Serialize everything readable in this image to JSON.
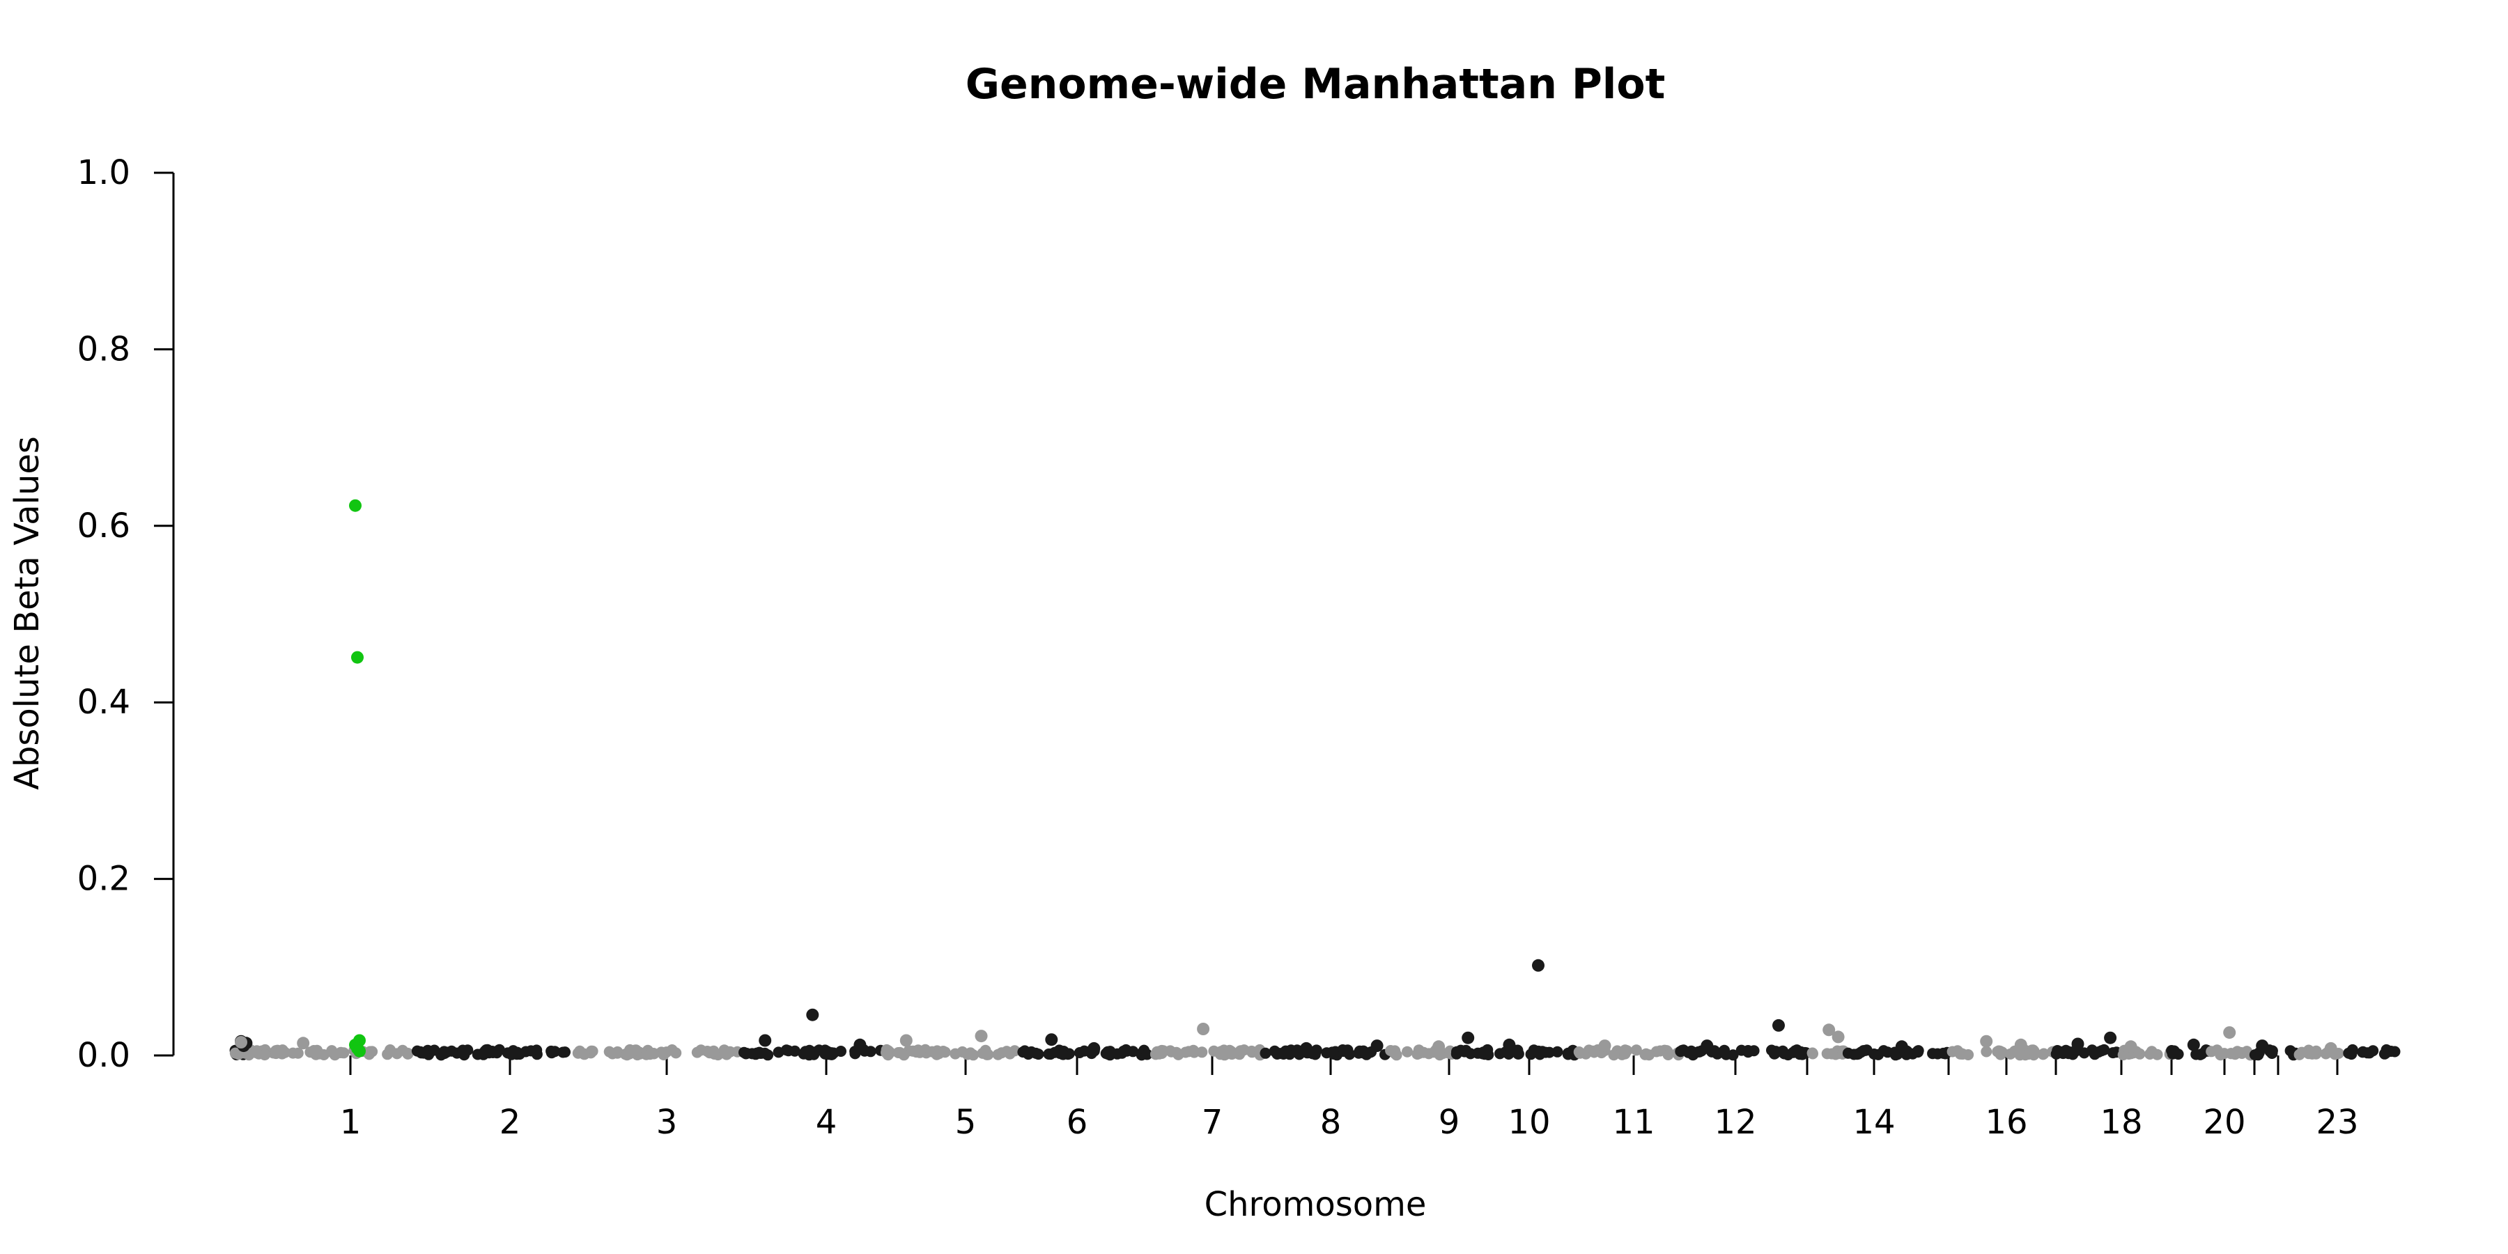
{
  "chart_data": {
    "type": "scatter",
    "title": "Genome-wide Manhattan Plot",
    "xlabel": "Chromosome",
    "ylabel": "Absolute Beta Values",
    "ylim": [
      0,
      1
    ],
    "yticks": [
      "0.0",
      "0.2",
      "0.4",
      "0.6",
      "0.8",
      "1.0"
    ],
    "grid": false,
    "chromosomes": [
      {
        "name": "1",
        "label": "1"
      },
      {
        "name": "2",
        "label": "2"
      },
      {
        "name": "3",
        "label": "3"
      },
      {
        "name": "4",
        "label": "4"
      },
      {
        "name": "5",
        "label": "5"
      },
      {
        "name": "6",
        "label": "6"
      },
      {
        "name": "7",
        "label": "7"
      },
      {
        "name": "8",
        "label": "8"
      },
      {
        "name": "9",
        "label": "9"
      },
      {
        "name": "10",
        "label": "10"
      },
      {
        "name": "11",
        "label": "11"
      },
      {
        "name": "12",
        "label": "12"
      },
      {
        "name": "13",
        "label": ""
      },
      {
        "name": "14",
        "label": "14"
      },
      {
        "name": "15",
        "label": ""
      },
      {
        "name": "16",
        "label": "16"
      },
      {
        "name": "17",
        "label": ""
      },
      {
        "name": "18",
        "label": "18"
      },
      {
        "name": "19",
        "label": ""
      },
      {
        "name": "20",
        "label": "20"
      },
      {
        "name": "21",
        "label": ""
      },
      {
        "name": "22",
        "label": ""
      },
      {
        "name": "23",
        "label": "23"
      }
    ],
    "colors": {
      "odd_chromosome": "#1a1a1a",
      "even_chromosome": "#999999",
      "highlight": "#11c511"
    },
    "series": [
      {
        "color_key": "highlight",
        "points": [
          {
            "chr": "1",
            "beta": 0.623
          },
          {
            "chr": "1",
            "beta": 0.451
          },
          {
            "chr": "1",
            "beta": 0.017
          },
          {
            "chr": "1",
            "beta": 0.012
          },
          {
            "chr": "1",
            "beta": 0.008
          },
          {
            "chr": "1",
            "beta": 0.005
          }
        ]
      },
      {
        "color_key": "odd_chromosome",
        "points": [
          {
            "chr": "1",
            "beta": 0.016
          },
          {
            "chr": "1",
            "beta": 0.011
          },
          {
            "chr": "1",
            "beta": 0.014
          },
          {
            "chr": "5",
            "beta": 0.017
          },
          {
            "chr": "5",
            "beta": 0.046
          },
          {
            "chr": "5",
            "beta": 0.012
          },
          {
            "chr": "7",
            "beta": 0.018
          },
          {
            "chr": "7",
            "beta": 0.008
          },
          {
            "chr": "9",
            "beta": 0.011
          },
          {
            "chr": "9",
            "beta": 0.008
          },
          {
            "chr": "11",
            "beta": 0.102
          },
          {
            "chr": "11",
            "beta": 0.02
          },
          {
            "chr": "11",
            "beta": 0.012
          },
          {
            "chr": "13",
            "beta": 0.034
          },
          {
            "chr": "13",
            "beta": 0.011
          },
          {
            "chr": "15",
            "beta": 0.01
          },
          {
            "chr": "17",
            "beta": 0.02
          },
          {
            "chr": "17",
            "beta": 0.013
          },
          {
            "chr": "19",
            "beta": 0.012
          },
          {
            "chr": "21",
            "beta": 0.011
          }
        ]
      },
      {
        "color_key": "even_chromosome",
        "points": [
          {
            "chr": "2",
            "beta": 0.015
          },
          {
            "chr": "2",
            "beta": 0.014
          },
          {
            "chr": "6",
            "beta": 0.022
          },
          {
            "chr": "6",
            "beta": 0.017
          },
          {
            "chr": "8",
            "beta": 0.03
          },
          {
            "chr": "10",
            "beta": 0.01
          },
          {
            "chr": "12",
            "beta": 0.011
          },
          {
            "chr": "14",
            "beta": 0.029
          },
          {
            "chr": "14",
            "beta": 0.021
          },
          {
            "chr": "16",
            "beta": 0.016
          },
          {
            "chr": "16",
            "beta": 0.012
          },
          {
            "chr": "18",
            "beta": 0.01
          },
          {
            "chr": "20",
            "beta": 0.026
          },
          {
            "chr": "22",
            "beta": 0.008
          }
        ]
      }
    ]
  }
}
